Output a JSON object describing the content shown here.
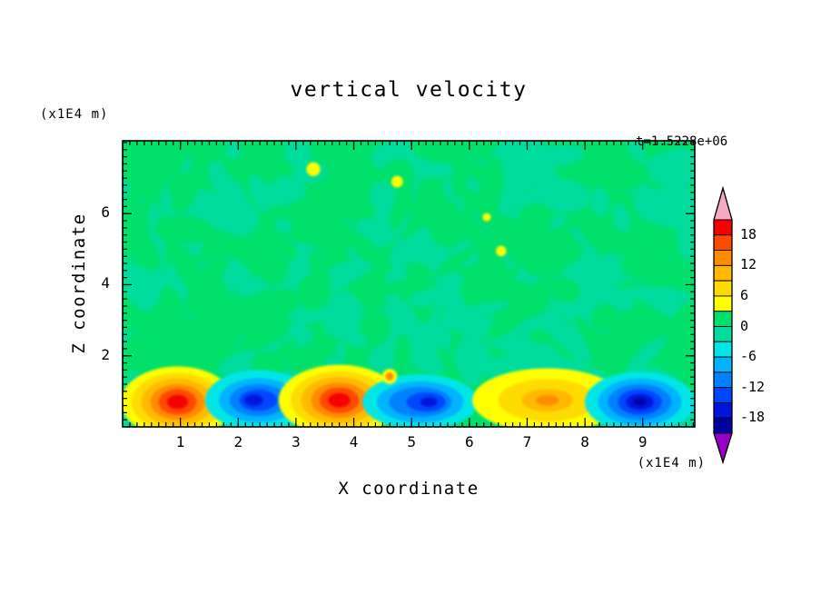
{
  "title": "vertical velocity",
  "time_label": "t=1.5228e+06",
  "axes": {
    "x_label": "X coordinate",
    "y_label": "Z coordinate",
    "x_unit": "(x1E4 m)",
    "y_unit": "(x1E4 m)",
    "x_ticks": [
      "1",
      "2",
      "3",
      "4",
      "5",
      "6",
      "7",
      "8",
      "9"
    ],
    "x_tick_values": [
      1,
      2,
      3,
      4,
      5,
      6,
      7,
      8,
      9
    ],
    "y_ticks": [
      "2",
      "4",
      "6"
    ],
    "y_tick_values": [
      2,
      4,
      6
    ]
  },
  "colorbar": {
    "labels": [
      "18",
      "12",
      "6",
      "0",
      "-6",
      "-12",
      "-18"
    ],
    "values": [
      18,
      12,
      6,
      0,
      -6,
      -12,
      -18
    ],
    "min": -21,
    "max": 21,
    "interval": 3,
    "segment_colors": [
      "#f60000",
      "#ff4a00",
      "#ff8c00",
      "#ffba00",
      "#ffdc00",
      "#ffff00",
      "#00e06a",
      "#00dc9e",
      "#00e6e6",
      "#00b4ff",
      "#0082ff",
      "#0046ff",
      "#0014dc",
      "#0000a0"
    ],
    "arrow_top_color": "#f4aac2",
    "arrow_bottom_color": "#9600c8"
  },
  "chart_data": {
    "type": "heatmap",
    "subtype": "filled-contour",
    "title": "vertical velocity",
    "xlabel": "X coordinate (x1E4 m)",
    "ylabel": "Z coordinate (x1E4 m)",
    "time": "t=1.5228e+06",
    "xlim": [
      0,
      9.9
    ],
    "ylim": [
      0,
      8.05
    ],
    "value_range": [
      -21,
      21
    ],
    "contour_interval": 3,
    "colorbar_tick_values": [
      18,
      12,
      6,
      0,
      -6,
      -12,
      -18
    ],
    "background_value_band": [
      -3,
      3
    ],
    "background_colors": [
      "#00e06a",
      "#00dc9e"
    ],
    "legend_position": "right-vertical-colorbar",
    "grid": false,
    "features": [
      {
        "kind": "updraft-max",
        "x": 0.95,
        "z": 0.7,
        "peak": 21,
        "rings": [
          {
            "color": "#ffff00",
            "rx": 0.98,
            "rz": 1.0
          },
          {
            "color": "#ffdc00",
            "rx": 0.8,
            "rz": 0.82
          },
          {
            "color": "#ffba00",
            "rx": 0.63,
            "rz": 0.66
          },
          {
            "color": "#ff8c00",
            "rx": 0.47,
            "rz": 0.5
          },
          {
            "color": "#ff4a00",
            "rx": 0.33,
            "rz": 0.36
          },
          {
            "color": "#f60000",
            "rx": 0.18,
            "rz": 0.2
          }
        ]
      },
      {
        "kind": "downdraft-min",
        "x": 2.35,
        "z": 0.75,
        "peak": -17,
        "rings": [
          {
            "color": "#00e6e6",
            "rx": 0.92,
            "rz": 0.85
          },
          {
            "color": "#00b4ff",
            "rx": 0.68,
            "rz": 0.62
          },
          {
            "color": "#0082ff",
            "rx": 0.5,
            "rz": 0.45
          },
          {
            "color": "#0046ff",
            "rx": 0.33,
            "rz": 0.3
          },
          {
            "color": "#0014dc",
            "rx": 0.16,
            "rz": 0.16,
            "dx": -0.08
          }
        ]
      },
      {
        "kind": "updraft-max",
        "x": 3.75,
        "z": 0.75,
        "peak": 21,
        "rings": [
          {
            "color": "#ffff00",
            "rx": 1.05,
            "rz": 1.0
          },
          {
            "color": "#ffdc00",
            "rx": 0.84,
            "rz": 0.82
          },
          {
            "color": "#ffba00",
            "rx": 0.66,
            "rz": 0.66
          },
          {
            "color": "#ff8c00",
            "rx": 0.49,
            "rz": 0.5
          },
          {
            "color": "#ff4a00",
            "rx": 0.34,
            "rz": 0.36
          },
          {
            "color": "#f60000",
            "rx": 0.19,
            "rz": 0.2
          }
        ]
      },
      {
        "kind": "downdraft-min",
        "x": 5.15,
        "z": 0.7,
        "peak": -15,
        "rings": [
          {
            "color": "#00e6e6",
            "rx": 1.0,
            "rz": 0.78
          },
          {
            "color": "#00b4ff",
            "rx": 0.75,
            "rz": 0.58
          },
          {
            "color": "#0082ff",
            "rx": 0.54,
            "rz": 0.42
          },
          {
            "color": "#0046ff",
            "rx": 0.34,
            "rz": 0.27,
            "dx": 0.1
          },
          {
            "color": "#0014dc",
            "rx": 0.15,
            "rz": 0.13,
            "dx": 0.15
          }
        ]
      },
      {
        "kind": "updraft-weak",
        "x": 7.35,
        "z": 0.75,
        "peak": 12,
        "rings": [
          {
            "color": "#ffff00",
            "rx": 1.3,
            "rz": 0.9
          },
          {
            "color": "#ffdc00",
            "rx": 0.85,
            "rz": 0.6
          },
          {
            "color": "#ffba00",
            "rx": 0.45,
            "rz": 0.32
          },
          {
            "color": "#ff8c00",
            "rx": 0.2,
            "rz": 0.15
          }
        ]
      },
      {
        "kind": "downdraft-min",
        "x": 8.95,
        "z": 0.7,
        "peak": -19,
        "rings": [
          {
            "color": "#00e6e6",
            "rx": 0.95,
            "rz": 0.85
          },
          {
            "color": "#00b4ff",
            "rx": 0.72,
            "rz": 0.66
          },
          {
            "color": "#0082ff",
            "rx": 0.55,
            "rz": 0.5
          },
          {
            "color": "#0046ff",
            "rx": 0.38,
            "rz": 0.36
          },
          {
            "color": "#0014dc",
            "rx": 0.24,
            "rz": 0.22
          },
          {
            "color": "#0000a0",
            "rx": 0.11,
            "rz": 0.1
          }
        ]
      }
    ],
    "specks": [
      {
        "x": 3.3,
        "z": 7.25,
        "color": "#ffff00",
        "r": 0.12
      },
      {
        "x": 4.75,
        "z": 6.9,
        "color": "#ffff00",
        "r": 0.1
      },
      {
        "x": 6.55,
        "z": 4.95,
        "color": "#ffff00",
        "r": 0.09
      },
      {
        "x": 6.3,
        "z": 5.9,
        "color": "#ffff00",
        "r": 0.07
      },
      {
        "x": 4.62,
        "z": 1.42,
        "color": "#ffff00",
        "r": 0.13
      },
      {
        "x": 4.62,
        "z": 1.42,
        "color": "#ff8c00",
        "r": 0.07
      }
    ]
  }
}
